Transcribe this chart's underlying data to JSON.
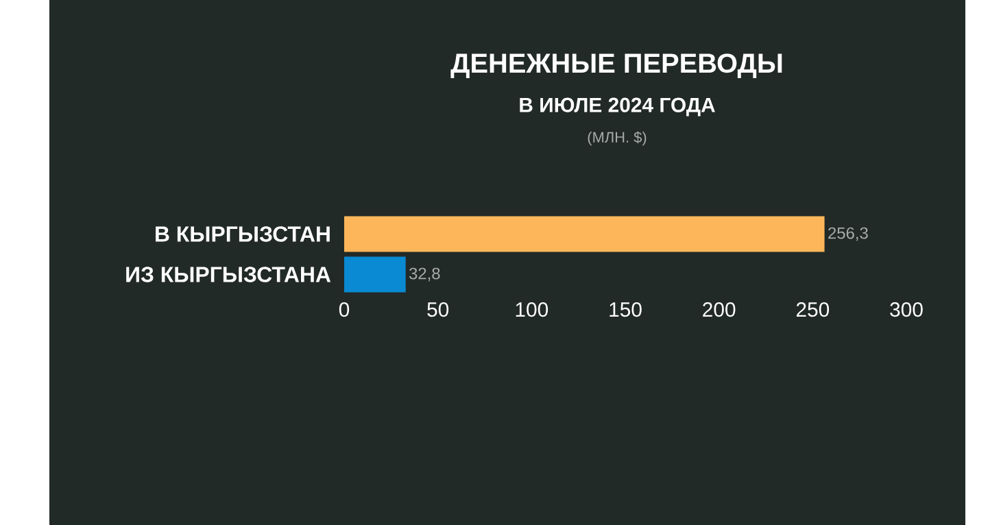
{
  "chart_data": {
    "type": "bar",
    "orientation": "horizontal",
    "title": "ДЕНЕЖНЫЕ ПЕРЕВОДЫ",
    "subtitle": "В ИЮЛЕ 2024 ГОДА",
    "annotations": [
      "(МЛН. $)"
    ],
    "categories": [
      "В КЫРГЫЗСТАН",
      "ИЗ КЫРГЫЗСТАНА"
    ],
    "values": [
      256.3,
      32.8
    ],
    "colors": [
      "#fdb75a",
      "#0a8ad2"
    ],
    "value_labels": [
      "256,3",
      "32,8"
    ],
    "xlim": [
      0,
      300
    ],
    "xticks": [
      0,
      50,
      100,
      150,
      200,
      250,
      300
    ]
  }
}
